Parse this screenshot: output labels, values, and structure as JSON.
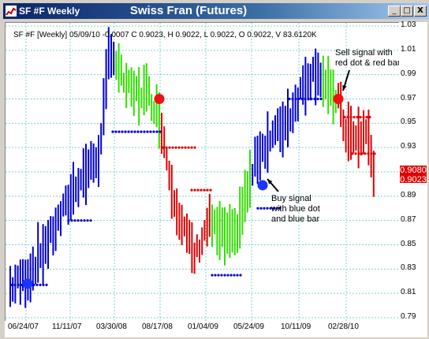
{
  "window": {
    "title": "SF #F Weekly",
    "chart_title": "Swiss Fran (Futures)",
    "min_label": "_",
    "max_label": "□",
    "close_label": "X"
  },
  "info_line": "SF #F [Weekly] 05/09/10 -0.0007 C 0.9023, H 0.9022, L 0.9022, O 0.9022, V 83.6120K",
  "price_box": "0.9080\n0.9023",
  "annotations": {
    "sell": "Sell signal with\nred dot & red bar",
    "buy": "Buy signal\nwith blue dot\nand blue bar"
  },
  "colors": {
    "up": "#0000cc",
    "neutral": "#33dd00",
    "down": "#dd0000",
    "grid": "#7fd0d0"
  },
  "chart_data": {
    "type": "bar",
    "xlabels": [
      "06/24/07",
      "11/11/07",
      "03/30/08",
      "08/17/08",
      "01/04/09",
      "05/24/09",
      "10/11/09",
      "02/28/10"
    ],
    "yticks": [
      "1.03",
      "1.01",
      "0.99",
      "0.97",
      "0.95",
      "0.93",
      "0.91",
      "0.89",
      "0.87",
      "0.85",
      "0.83",
      "0.81",
      "0.79"
    ],
    "ylim": [
      0.79,
      1.03
    ],
    "last_close": 0.9023
  }
}
